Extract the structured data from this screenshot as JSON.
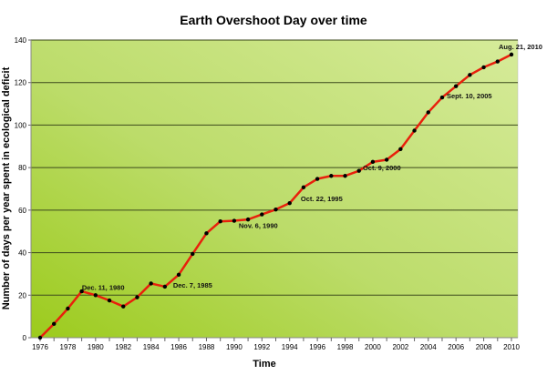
{
  "chart_data": {
    "type": "line",
    "title": "Earth Overshoot Day over time",
    "xlabel": "Time",
    "ylabel": "Number of days per year spent in ecological deficit",
    "xlim": [
      1976,
      2010
    ],
    "ylim": [
      0,
      140
    ],
    "grid": true,
    "x_ticks": [
      "1976",
      "1978",
      "1980",
      "1982",
      "1984",
      "1986",
      "1988",
      "1990",
      "1992",
      "1994",
      "1996",
      "1998",
      "2000",
      "2002",
      "2004",
      "2006",
      "2008",
      "2010"
    ],
    "y_ticks": [
      "0",
      "20",
      "40",
      "60",
      "80",
      "100",
      "120",
      "140"
    ],
    "series": [
      {
        "color": "#e8200c",
        "marker_color": "#000000",
        "x": [
          1976,
          1977,
          1978,
          1979,
          1980,
          1981,
          1982,
          1983,
          1984,
          1985,
          1986,
          1987,
          1988,
          1989,
          1990,
          1991,
          1992,
          1993,
          1994,
          1995,
          1996,
          1997,
          1998,
          1999,
          2000,
          2001,
          2002,
          2003,
          2004,
          2005,
          2006,
          2007,
          2008,
          2009,
          2010
        ],
        "y": [
          0,
          6.5,
          13.7,
          21.8,
          20,
          17.5,
          14.7,
          19,
          25.5,
          24,
          29.6,
          39.4,
          49.1,
          54.7,
          55,
          55.6,
          58,
          60.3,
          63.3,
          70.7,
          74.7,
          76.1,
          76.1,
          78.5,
          82.7,
          83.7,
          88.7,
          97.4,
          106,
          113,
          118.3,
          123.6,
          127.2,
          129.9,
          133.2
        ]
      }
    ],
    "annotations": [
      {
        "x": 1980,
        "text": "Dec. 11, 1980"
      },
      {
        "x": 1985,
        "text": "Dec. 7, 1985"
      },
      {
        "x": 1990,
        "text": "Nov. 6, 1990"
      },
      {
        "x": 1995,
        "text": "Oct. 22, 1995"
      },
      {
        "x": 2000,
        "text": "Oct. 9, 2000"
      },
      {
        "x": 2005,
        "text": "Sept. 10, 2005"
      },
      {
        "x": 2010,
        "text": "Aug. 21, 2010"
      }
    ],
    "background_gradient": [
      "#9ccb1c",
      "#d6eb9a"
    ]
  }
}
